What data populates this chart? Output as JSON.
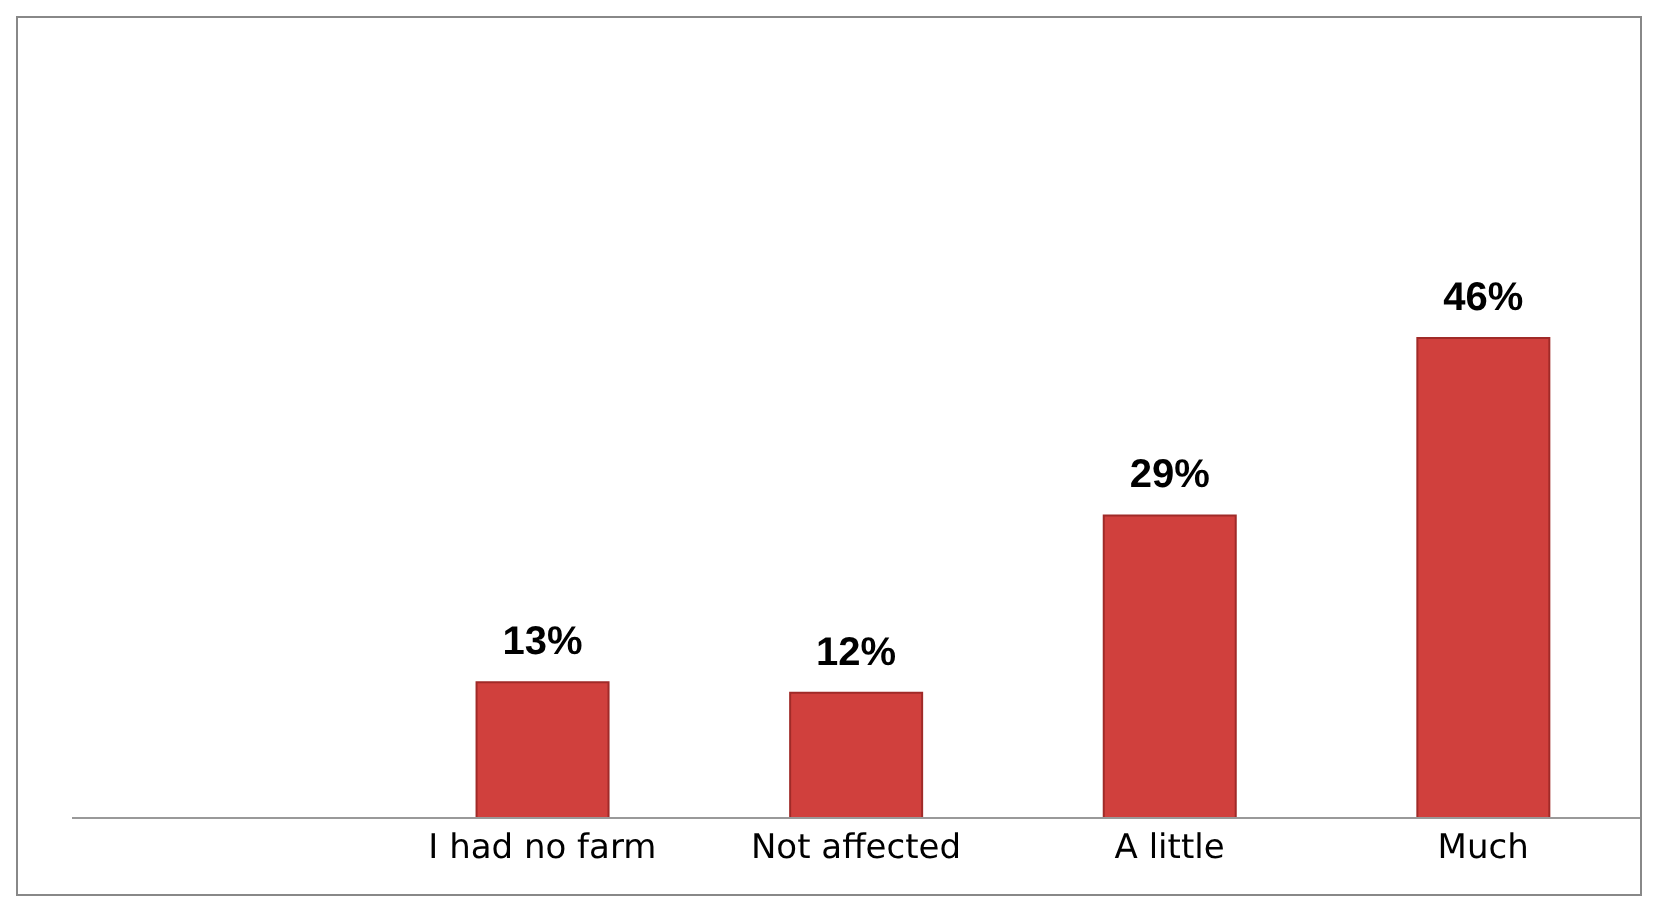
{
  "chart_data": {
    "type": "bar",
    "categories": [
      null,
      "I had no farm",
      "Not affected",
      "A little",
      "Much"
    ],
    "values": [
      null,
      13,
      12,
      29,
      46
    ],
    "color": "#d0403d",
    "data_labels": true,
    "value_labels": [
      null,
      "13%",
      "12%",
      "29%",
      "46%"
    ],
    "grid": false,
    "legend": false
  }
}
